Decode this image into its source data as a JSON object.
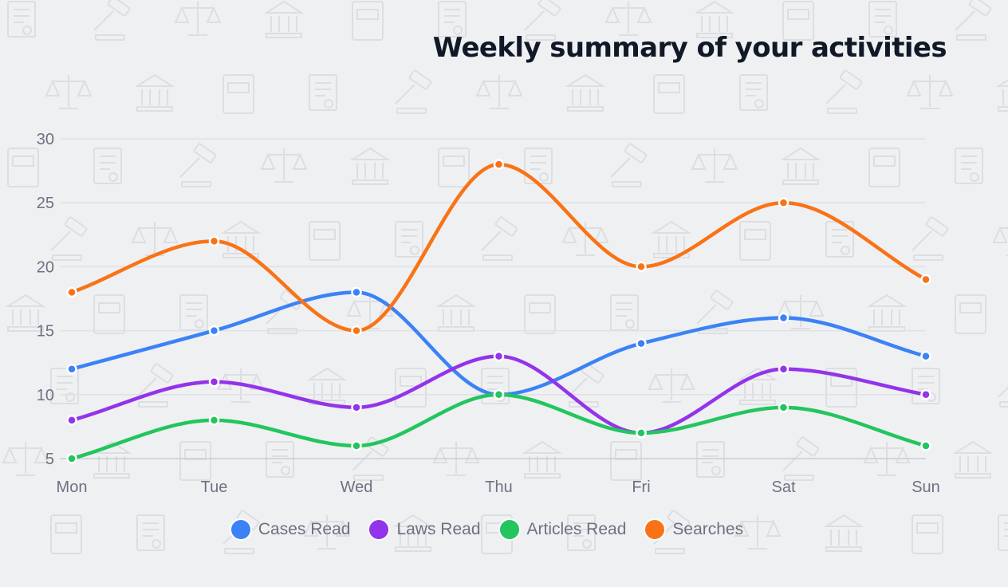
{
  "chart_data": {
    "type": "line",
    "title": "Weekly summary of your activities",
    "xlabel": "",
    "ylabel": "",
    "categories": [
      "Mon",
      "Tue",
      "Wed",
      "Thu",
      "Fri",
      "Sat",
      "Sun"
    ],
    "ylim": [
      5,
      30
    ],
    "yticks": [
      "30",
      "25",
      "20",
      "15",
      "10",
      "5"
    ],
    "grid": true,
    "legend_position": "bottom",
    "series": [
      {
        "name": "Cases Read",
        "color": "#3b82f6",
        "values": [
          12,
          15,
          18,
          10,
          14,
          16,
          13
        ]
      },
      {
        "name": "Laws Read",
        "color": "#9333ea",
        "values": [
          8,
          11,
          9,
          13,
          7,
          12,
          10
        ]
      },
      {
        "name": "Articles Read",
        "color": "#22c55e",
        "values": [
          5,
          8,
          6,
          10,
          7,
          9,
          6
        ]
      },
      {
        "name": "Searches",
        "color": "#f97316",
        "values": [
          18,
          22,
          15,
          28,
          20,
          25,
          19
        ]
      }
    ]
  }
}
